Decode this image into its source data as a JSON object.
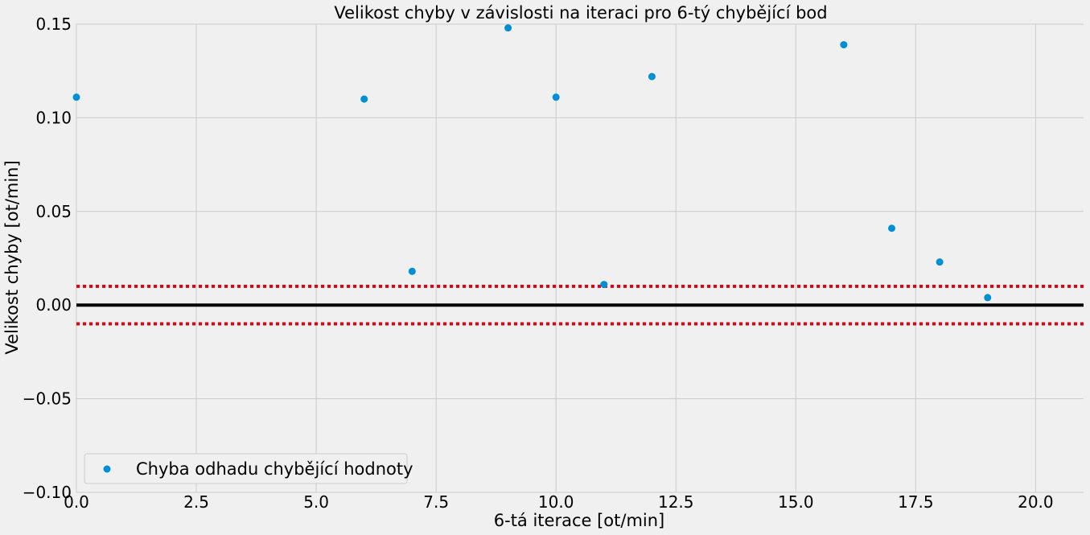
{
  "chart_data": {
    "type": "scatter",
    "title": "Velikost chyby v závislosti na iteraci pro 6-tý chybějící bod",
    "xlabel": "6-tá iterace [ot/min]",
    "ylabel": "Velikost chyby [ot/min]",
    "xlim": [
      0,
      21
    ],
    "ylim": [
      -0.1,
      0.15
    ],
    "xticks": [
      0.0,
      2.5,
      5.0,
      7.5,
      10.0,
      12.5,
      15.0,
      17.5,
      20.0
    ],
    "xtick_labels": [
      "0.0",
      "2.5",
      "5.0",
      "7.5",
      "10.0",
      "12.5",
      "15.0",
      "17.5",
      "20.0"
    ],
    "yticks": [
      -0.1,
      -0.05,
      0.0,
      0.05,
      0.1,
      0.15
    ],
    "ytick_labels": [
      "−0.10",
      "−0.05",
      "0.00",
      "0.05",
      "0.10",
      "0.15"
    ],
    "grid": true,
    "legend_position": "lower-left",
    "series": [
      {
        "name": "Chyba odhadu chybějící hodnoty",
        "color": "#008fd5",
        "x": [
          0,
          6,
          7,
          9,
          10,
          11,
          12,
          16,
          17,
          18,
          19
        ],
        "y": [
          0.111,
          0.11,
          0.018,
          0.148,
          0.111,
          0.011,
          0.122,
          0.139,
          0.041,
          0.023,
          0.004
        ]
      }
    ],
    "reference_lines": [
      {
        "y": 0.0,
        "color": "#000000",
        "style": "solid"
      },
      {
        "y": 0.01,
        "color": "#e5000d",
        "style": "dotted"
      },
      {
        "y": -0.01,
        "color": "#e5000d",
        "style": "dotted"
      }
    ],
    "colors": {
      "background": "#f0f0f0",
      "grid": "#cbcbcb"
    }
  }
}
